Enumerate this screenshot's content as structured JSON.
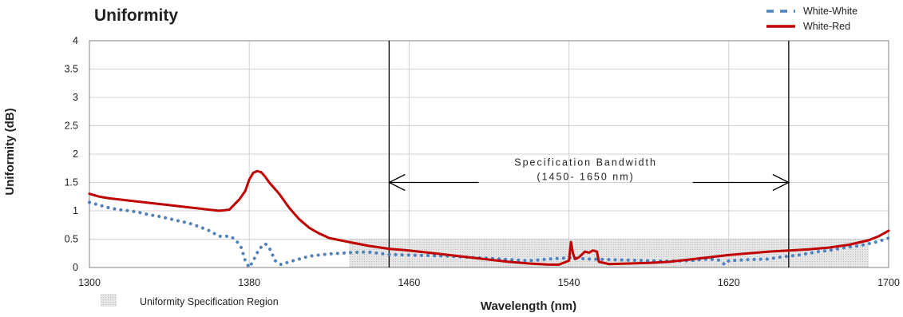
{
  "chart_data": {
    "type": "line",
    "title": "Uniformity",
    "xlabel": "Wavelength (nm)",
    "ylabel": "Uniformity (dB)",
    "xlim": [
      1300,
      1700
    ],
    "ylim": [
      0,
      4
    ],
    "xticks": [
      1300,
      1380,
      1460,
      1540,
      1620,
      1700
    ],
    "xtick_labels": [
      "1300",
      "1380",
      "1460",
      "1540",
      "1620",
      "1700"
    ],
    "yticks": [
      0,
      0.5,
      1,
      1.5,
      2,
      2.5,
      3,
      3.5,
      4
    ],
    "ytick_labels": [
      "0",
      "0.5",
      "1",
      "1.5",
      "2",
      "2.5",
      "3",
      "3.5",
      "4"
    ],
    "grid": true,
    "legend_placement": "top-right",
    "series": [
      {
        "name": "White-White",
        "style": "dotted",
        "color": "#4f81bd",
        "x": [
          1300,
          1305,
          1310,
          1315,
          1320,
          1325,
          1330,
          1335,
          1340,
          1345,
          1350,
          1355,
          1360,
          1365,
          1370,
          1373,
          1376,
          1378,
          1380,
          1382,
          1385,
          1388,
          1390,
          1393,
          1396,
          1400,
          1405,
          1410,
          1415,
          1420,
          1425,
          1430,
          1435,
          1440,
          1445,
          1450,
          1460,
          1470,
          1480,
          1490,
          1500,
          1510,
          1520,
          1530,
          1540,
          1550,
          1560,
          1570,
          1580,
          1590,
          1600,
          1610,
          1615,
          1618,
          1620,
          1625,
          1630,
          1640,
          1645,
          1650,
          1655,
          1660,
          1665,
          1670,
          1675,
          1680,
          1685,
          1690,
          1695,
          1700
        ],
        "y": [
          1.15,
          1.1,
          1.05,
          1.02,
          1.0,
          0.97,
          0.93,
          0.9,
          0.86,
          0.82,
          0.78,
          0.72,
          0.65,
          0.55,
          0.55,
          0.5,
          0.35,
          0.12,
          0.0,
          0.12,
          0.33,
          0.42,
          0.35,
          0.12,
          0.05,
          0.1,
          0.15,
          0.2,
          0.22,
          0.24,
          0.25,
          0.26,
          0.27,
          0.27,
          0.25,
          0.23,
          0.22,
          0.21,
          0.2,
          0.18,
          0.16,
          0.14,
          0.12,
          0.15,
          0.17,
          0.15,
          0.14,
          0.13,
          0.12,
          0.11,
          0.12,
          0.15,
          0.13,
          0.05,
          0.12,
          0.13,
          0.14,
          0.15,
          0.18,
          0.2,
          0.22,
          0.25,
          0.28,
          0.3,
          0.33,
          0.36,
          0.38,
          0.42,
          0.46,
          0.52
        ]
      },
      {
        "name": "White-Red",
        "style": "solid",
        "color": "#c00000",
        "x": [
          1300,
          1305,
          1310,
          1320,
          1330,
          1340,
          1350,
          1360,
          1365,
          1370,
          1375,
          1378,
          1380,
          1382,
          1384,
          1386,
          1388,
          1390,
          1395,
          1400,
          1405,
          1410,
          1415,
          1420,
          1430,
          1440,
          1450,
          1460,
          1470,
          1480,
          1490,
          1500,
          1510,
          1520,
          1530,
          1535,
          1540,
          1541,
          1542,
          1543,
          1545,
          1548,
          1550,
          1552,
          1554,
          1555,
          1560,
          1570,
          1580,
          1590,
          1600,
          1610,
          1620,
          1630,
          1640,
          1650,
          1660,
          1670,
          1680,
          1690,
          1695,
          1700
        ],
        "y": [
          1.3,
          1.25,
          1.22,
          1.18,
          1.14,
          1.1,
          1.06,
          1.02,
          1.0,
          1.02,
          1.2,
          1.35,
          1.55,
          1.67,
          1.7,
          1.68,
          1.6,
          1.5,
          1.3,
          1.05,
          0.85,
          0.7,
          0.6,
          0.52,
          0.45,
          0.38,
          0.33,
          0.3,
          0.26,
          0.22,
          0.18,
          0.14,
          0.1,
          0.07,
          0.05,
          0.05,
          0.12,
          0.45,
          0.25,
          0.15,
          0.18,
          0.28,
          0.26,
          0.3,
          0.28,
          0.1,
          0.06,
          0.07,
          0.08,
          0.1,
          0.14,
          0.18,
          0.22,
          0.25,
          0.28,
          0.3,
          0.32,
          0.35,
          0.4,
          0.48,
          0.55,
          0.65
        ]
      }
    ],
    "spec_bandwidth": {
      "x_start": 1450,
      "x_end": 1650,
      "label_line1": "Specification Bandwidth",
      "label_line2": "(1450- 1650 nm)",
      "label_y": 1.5
    },
    "spec_region": {
      "name": "Uniformity Specification Region",
      "x_start": 1430,
      "x_end": 1690,
      "y_max": 0.5,
      "color": "#d9d9d9"
    }
  }
}
